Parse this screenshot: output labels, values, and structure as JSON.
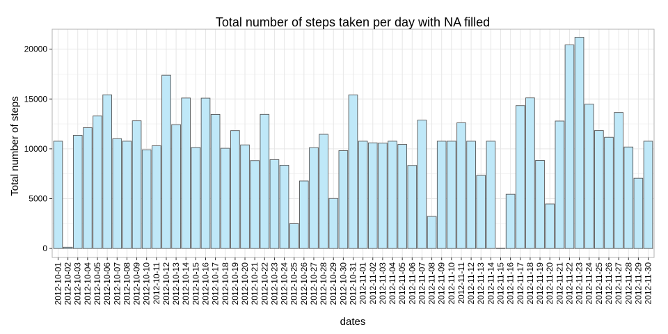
{
  "chart_data": {
    "type": "bar",
    "title": "Total number of steps taken per day with NA filled",
    "xlabel": "dates",
    "ylabel": "Total number of steps",
    "ylim": [
      -900,
      22000
    ],
    "yticks": [
      0,
      5000,
      10000,
      15000,
      20000
    ],
    "grid": true,
    "bar_fill": "#bfe8f8",
    "bar_stroke": "#555555",
    "panel_border": "#b3b3b3",
    "major_grid": "#e6e6e6",
    "minor_grid": "#f3f3f3",
    "categories": [
      "2012-10-01",
      "2012-10-02",
      "2012-10-03",
      "2012-10-04",
      "2012-10-05",
      "2012-10-06",
      "2012-10-07",
      "2012-10-08",
      "2012-10-09",
      "2012-10-10",
      "2012-10-11",
      "2012-10-12",
      "2012-10-13",
      "2012-10-14",
      "2012-10-15",
      "2012-10-16",
      "2012-10-17",
      "2012-10-18",
      "2012-10-19",
      "2012-10-20",
      "2012-10-21",
      "2012-10-22",
      "2012-10-23",
      "2012-10-24",
      "2012-10-25",
      "2012-10-26",
      "2012-10-27",
      "2012-10-28",
      "2012-10-29",
      "2012-10-30",
      "2012-10-31",
      "2012-11-01",
      "2012-11-02",
      "2012-11-03",
      "2012-11-04",
      "2012-11-05",
      "2012-11-06",
      "2012-11-07",
      "2012-11-08",
      "2012-11-09",
      "2012-11-10",
      "2012-11-11",
      "2012-11-12",
      "2012-11-13",
      "2012-11-14",
      "2012-11-15",
      "2012-11-16",
      "2012-11-17",
      "2012-11-18",
      "2012-11-19",
      "2012-11-20",
      "2012-11-21",
      "2012-11-22",
      "2012-11-23",
      "2012-11-24",
      "2012-11-25",
      "2012-11-26",
      "2012-11-27",
      "2012-11-28",
      "2012-11-29",
      "2012-11-30"
    ],
    "values": [
      10766,
      126,
      11352,
      12116,
      13294,
      15420,
      11015,
      10766,
      12811,
      9900,
      10304,
      17382,
      12426,
      15098,
      10139,
      15084,
      13452,
      10056,
      11829,
      10395,
      8821,
      13460,
      8918,
      8355,
      2492,
      6778,
      10119,
      11458,
      5018,
      9819,
      15414,
      10766,
      10600,
      10571,
      10766,
      10439,
      8334,
      12883,
      3219,
      10766,
      10766,
      12608,
      10765,
      7336,
      10766,
      41,
      5441,
      14339,
      15110,
      8841,
      4472,
      12787,
      20427,
      21194,
      14478,
      11834,
      11162,
      13646,
      10183,
      7047,
      10766
    ]
  }
}
